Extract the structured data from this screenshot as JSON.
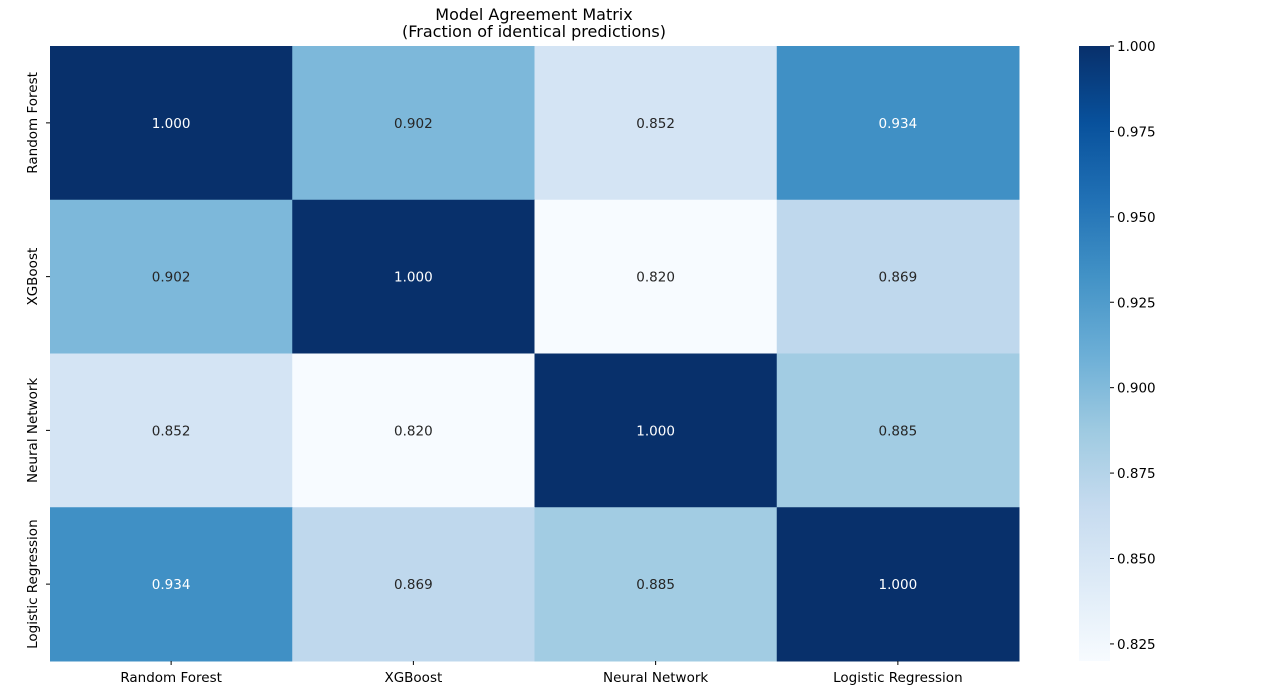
{
  "chart_data": {
    "type": "heatmap",
    "title": "Model Agreement Matrix",
    "subtitle": "(Fraction of identical predictions)",
    "row_labels": [
      "Random Forest",
      "XGBoost",
      "Neural Network",
      "Logistic Regression"
    ],
    "col_labels": [
      "Random Forest",
      "XGBoost",
      "Neural Network",
      "Logistic Regression"
    ],
    "values": [
      [
        1.0,
        0.902,
        0.852,
        0.934
      ],
      [
        0.902,
        1.0,
        0.82,
        0.869
      ],
      [
        0.852,
        0.82,
        1.0,
        0.885
      ],
      [
        0.934,
        0.869,
        0.885,
        1.0
      ]
    ],
    "cell_labels": [
      [
        "1.000",
        "0.902",
        "0.852",
        "0.934"
      ],
      [
        "0.902",
        "1.000",
        "0.820",
        "0.869"
      ],
      [
        "0.852",
        "0.820",
        "1.000",
        "0.885"
      ],
      [
        "0.934",
        "0.869",
        "0.885",
        "1.000"
      ]
    ],
    "colormap": "Blues",
    "vmin": 0.82,
    "vmax": 1.0,
    "colorbar": {
      "ticks": [
        0.825,
        0.85,
        0.875,
        0.9,
        0.925,
        0.95,
        0.975,
        1.0
      ],
      "tick_labels": [
        "0.825",
        "0.850",
        "0.875",
        "0.900",
        "0.925",
        "0.950",
        "0.975",
        "1.000"
      ]
    }
  }
}
